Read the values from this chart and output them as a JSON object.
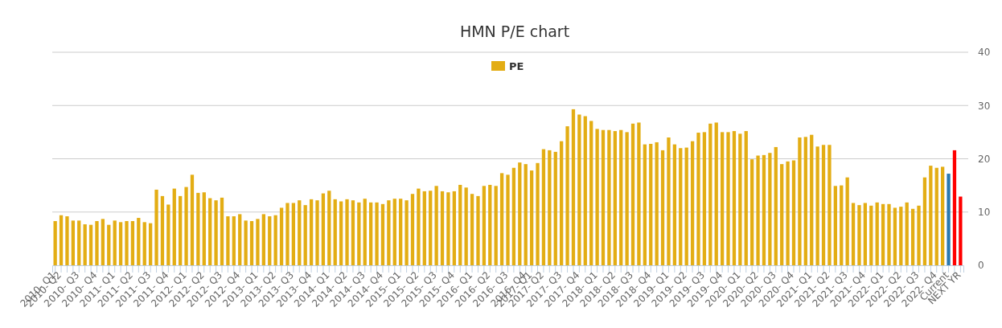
{
  "chart_data": {
    "type": "bar",
    "title": "HMN P/E chart",
    "categories": [
      "2010- Q1",
      "2010- Q2",
      null,
      null,
      "2010- Q3",
      null,
      null,
      "2010- Q4",
      null,
      null,
      "2011- Q1",
      null,
      null,
      "2011- Q2",
      null,
      null,
      "2011- Q3",
      null,
      null,
      "2011- Q4",
      null,
      null,
      "2012- Q1",
      null,
      null,
      "2012- Q2",
      null,
      null,
      "2012- Q3",
      null,
      null,
      "2012- Q4",
      null,
      null,
      "2013- Q1",
      null,
      null,
      "2013- Q2",
      null,
      null,
      "2013- Q3",
      null,
      null,
      "2013- Q4",
      null,
      null,
      "2014- Q1",
      null,
      null,
      "2014- Q2",
      null,
      null,
      "2014- Q3",
      null,
      null,
      "2014- Q4",
      null,
      null,
      "2015- Q1",
      null,
      null,
      "2015- Q2",
      null,
      null,
      "2015- Q3",
      null,
      null,
      "2015- Q4",
      null,
      null,
      "2016- Q1",
      null,
      null,
      "2016- Q2",
      null,
      null,
      "2016- Q3",
      null,
      null,
      "2016- Q4",
      "2017- Q1",
      null,
      "2017- Q2",
      null,
      null,
      "2017- Q3",
      null,
      null,
      "2017- Q4",
      null,
      null,
      "2018- Q1",
      null,
      null,
      "2018- Q2",
      null,
      null,
      "2018- Q3",
      null,
      null,
      "2018- Q4",
      null,
      null,
      "2019- Q1",
      null,
      null,
      "2019- Q2",
      null,
      null,
      "2019- Q3",
      null,
      null,
      "2019- Q4",
      null,
      null,
      "2020- Q1",
      null,
      null,
      "2020- Q2",
      null,
      null,
      "2020- Q3",
      null,
      null,
      "2020- Q4",
      null,
      null,
      "2021- Q1",
      null,
      null,
      "2021- Q2",
      null,
      null,
      "2021- Q3",
      null,
      null,
      "2021- Q4",
      null,
      null,
      "2022- Q1",
      null,
      null,
      "2022- Q2",
      null,
      null,
      "2022- Q3",
      null,
      null,
      "2022- Q4",
      null,
      "Current",
      null,
      "NEXT YR"
    ],
    "series": [
      {
        "name": "PE",
        "color": "#e3ad14",
        "values": [
          8.3,
          9.4,
          9.2,
          8.4,
          8.4,
          7.7,
          7.6,
          8.3,
          8.7,
          7.6,
          8.4,
          8.1,
          8.3,
          8.3,
          8.9,
          8.1,
          7.9,
          14.2,
          13.0,
          11.4,
          14.4,
          13.0,
          14.7,
          17.0,
          13.6,
          13.7,
          12.6,
          12.2,
          12.7,
          9.2,
          9.2,
          9.6,
          8.4,
          8.3,
          8.7,
          9.6,
          9.2,
          9.4,
          10.8,
          11.7,
          11.7,
          12.2,
          11.3,
          12.4,
          12.2,
          13.5,
          14.0,
          12.4,
          12.0,
          12.4,
          12.2,
          11.8,
          12.5,
          11.8,
          11.8,
          11.5,
          12.2,
          12.5,
          12.5,
          12.2,
          13.4,
          14.4,
          13.9,
          14.0,
          14.9,
          13.9,
          13.7,
          13.9,
          15.1,
          14.6,
          13.4,
          13.0,
          14.9,
          15.1,
          14.9,
          17.3,
          17.0,
          18.3,
          19.3,
          19.0,
          17.8,
          19.2,
          21.8,
          21.6,
          21.3,
          23.3,
          26.1,
          29.3,
          28.3,
          28.0,
          27.1,
          25.6,
          25.4,
          25.4,
          25.2,
          25.4,
          25.0,
          26.6,
          26.8,
          22.7,
          22.8,
          23.1,
          21.6,
          24.0,
          22.7,
          22.0,
          22.1,
          23.3,
          24.9,
          25.0,
          26.6,
          26.8,
          25.0,
          25.0,
          25.2,
          24.7,
          25.2,
          19.9,
          20.6,
          20.7,
          21.1,
          22.2,
          19.0,
          19.5,
          19.7,
          24.0,
          24.1,
          24.5,
          22.3,
          22.6,
          22.6,
          14.9,
          15.0,
          16.5,
          11.7,
          11.3,
          11.7,
          11.2,
          11.8,
          11.5,
          11.5,
          10.8,
          11.0,
          11.8,
          10.6,
          11.2,
          16.5,
          18.7,
          18.3,
          18.5,
          17.2,
          21.6,
          12.9
        ],
        "colors": [
          "#e3ad14",
          "#e3ad14",
          "#e3ad14",
          "#e3ad14",
          "#e3ad14",
          "#e3ad14",
          "#e3ad14",
          "#e3ad14",
          "#e3ad14",
          "#e3ad14",
          "#e3ad14",
          "#e3ad14",
          "#e3ad14",
          "#e3ad14",
          "#e3ad14",
          "#e3ad14",
          "#e3ad14",
          "#e3ad14",
          "#e3ad14",
          "#e3ad14",
          "#e3ad14",
          "#e3ad14",
          "#e3ad14",
          "#e3ad14",
          "#e3ad14",
          "#e3ad14",
          "#e3ad14",
          "#e3ad14",
          "#e3ad14",
          "#e3ad14",
          "#e3ad14",
          "#e3ad14",
          "#e3ad14",
          "#e3ad14",
          "#e3ad14",
          "#e3ad14",
          "#e3ad14",
          "#e3ad14",
          "#e3ad14",
          "#e3ad14",
          "#e3ad14",
          "#e3ad14",
          "#e3ad14",
          "#e3ad14",
          "#e3ad14",
          "#e3ad14",
          "#e3ad14",
          "#e3ad14",
          "#e3ad14",
          "#e3ad14",
          "#e3ad14",
          "#e3ad14",
          "#e3ad14",
          "#e3ad14",
          "#e3ad14",
          "#e3ad14",
          "#e3ad14",
          "#e3ad14",
          "#e3ad14",
          "#e3ad14",
          "#e3ad14",
          "#e3ad14",
          "#e3ad14",
          "#e3ad14",
          "#e3ad14",
          "#e3ad14",
          "#e3ad14",
          "#e3ad14",
          "#e3ad14",
          "#e3ad14",
          "#e3ad14",
          "#e3ad14",
          "#e3ad14",
          "#e3ad14",
          "#e3ad14",
          "#e3ad14",
          "#e3ad14",
          "#e3ad14",
          "#e3ad14",
          "#e3ad14",
          "#e3ad14",
          "#e3ad14",
          "#e3ad14",
          "#e3ad14",
          "#e3ad14",
          "#e3ad14",
          "#e3ad14",
          "#e3ad14",
          "#e3ad14",
          "#e3ad14",
          "#e3ad14",
          "#e3ad14",
          "#e3ad14",
          "#e3ad14",
          "#e3ad14",
          "#e3ad14",
          "#e3ad14",
          "#e3ad14",
          "#e3ad14",
          "#e3ad14",
          "#e3ad14",
          "#e3ad14",
          "#e3ad14",
          "#e3ad14",
          "#e3ad14",
          "#e3ad14",
          "#e3ad14",
          "#e3ad14",
          "#e3ad14",
          "#e3ad14",
          "#e3ad14",
          "#e3ad14",
          "#e3ad14",
          "#e3ad14",
          "#e3ad14",
          "#e3ad14",
          "#e3ad14",
          "#e3ad14",
          "#e3ad14",
          "#e3ad14",
          "#e3ad14",
          "#e3ad14",
          "#e3ad14",
          "#e3ad14",
          "#e3ad14",
          "#e3ad14",
          "#e3ad14",
          "#e3ad14",
          "#e3ad14",
          "#e3ad14",
          "#e3ad14",
          "#e3ad14",
          "#e3ad14",
          "#e3ad14",
          "#e3ad14",
          "#e3ad14",
          "#e3ad14",
          "#e3ad14",
          "#e3ad14",
          "#e3ad14",
          "#e3ad14",
          "#e3ad14",
          "#e3ad14",
          "#e3ad14",
          "#e3ad14",
          "#e3ad14",
          "#e3ad14",
          "#e3ad14",
          "#e3ad14",
          "#e3ad14",
          "#2a78b0",
          "#ff0000",
          "#ff0000"
        ]
      }
    ],
    "ylim": [
      0,
      40
    ],
    "yticks": [
      0,
      10,
      20,
      30,
      40
    ],
    "grid": "y",
    "legend": "top"
  }
}
